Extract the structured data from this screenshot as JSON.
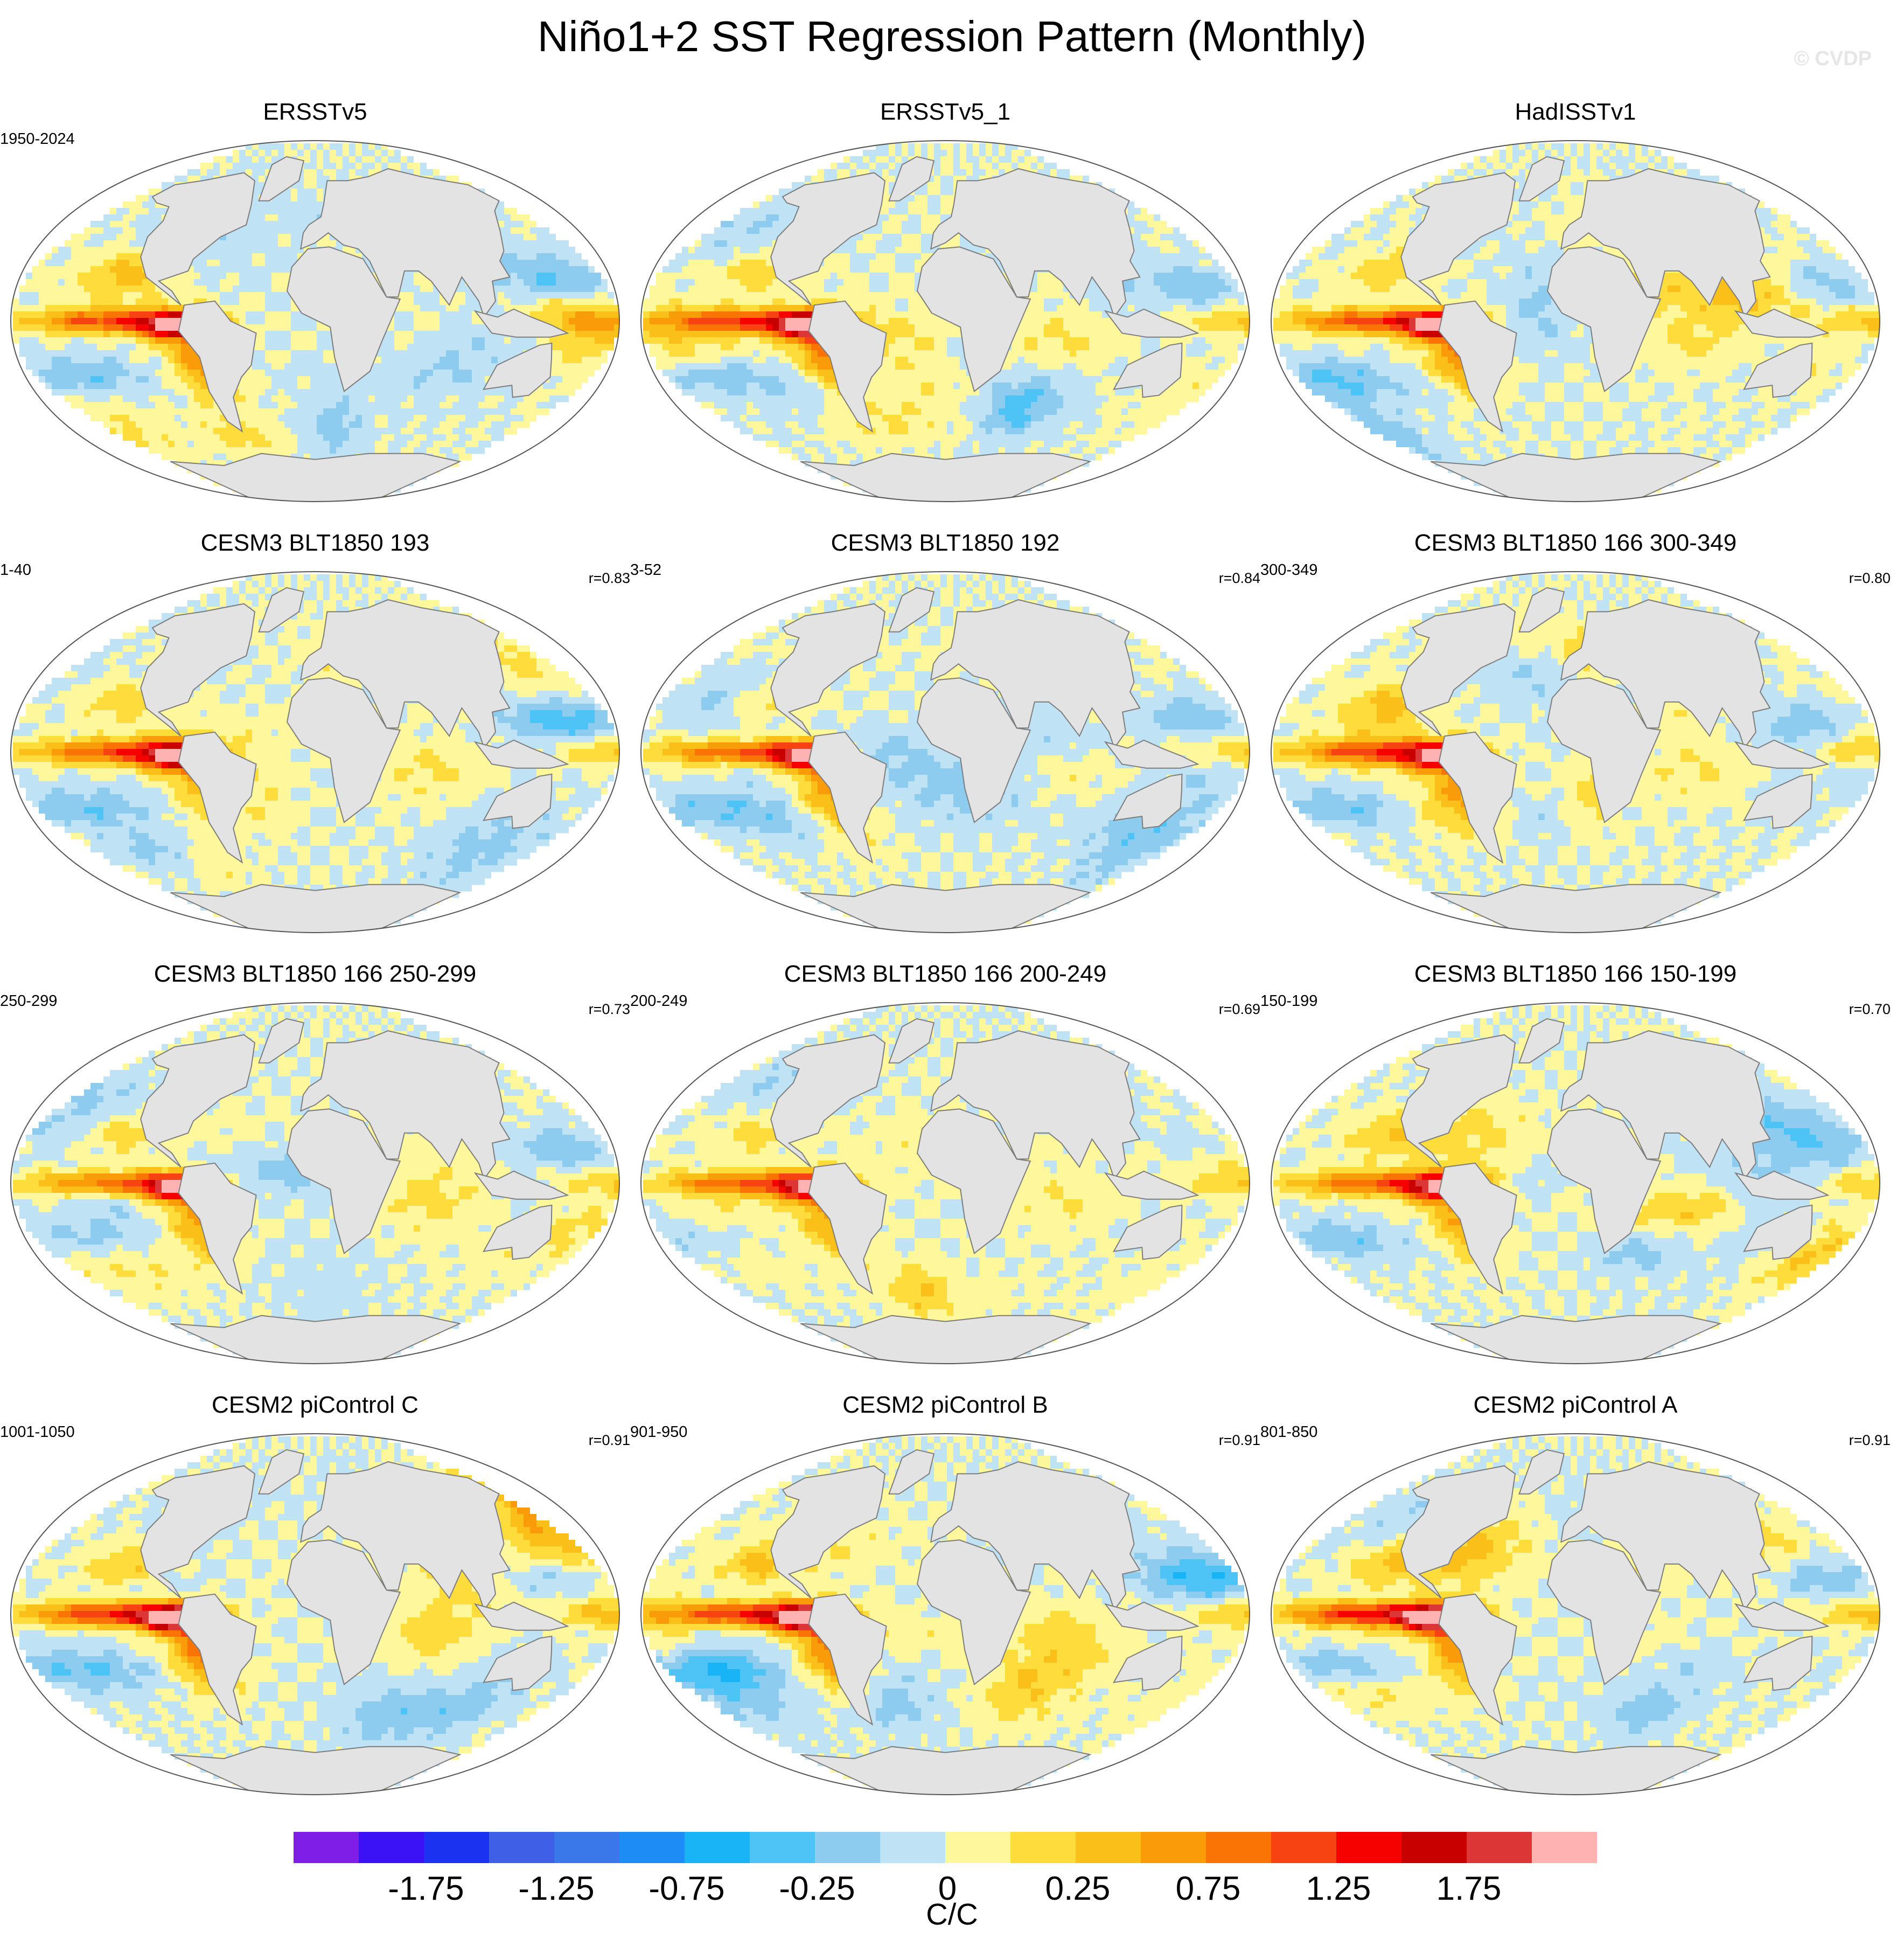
{
  "header": {
    "title": "Niño1+2 SST Regression Pattern (Monthly)",
    "watermark": "© CVDP"
  },
  "chart_data": {
    "type": "heatmap",
    "variable": "SST regression on Niño1+2 index",
    "projection": "global map (Robinson-like)",
    "units": "C/C",
    "colorbar": {
      "label": "C/C",
      "tick_labels": [
        "-1.75",
        "-1.25",
        "-0.75",
        "-0.25",
        "0",
        "0.25",
        "0.75",
        "1.25",
        "1.75"
      ],
      "colors": [
        "#7f1ee6",
        "#3a12f5",
        "#1b32f0",
        "#3e5fe6",
        "#3a78ea",
        "#1e8cf5",
        "#19b4f5",
        "#4ec3f5",
        "#8dccee",
        "#bfe3f5",
        "#fef79b",
        "#fddc3c",
        "#fbbf19",
        "#fa9c0a",
        "#f97405",
        "#f74212",
        "#f70000",
        "#c80000",
        "#dc3636",
        "#ffb2b2"
      ]
    },
    "panels": [
      {
        "title": "ERSSTv5",
        "period": "1950-2024",
        "correlation": "",
        "amp": 1.0,
        "seed": 3
      },
      {
        "title": "ERSSTv5_1",
        "period": "",
        "correlation": "",
        "amp": 1.0,
        "seed": 7
      },
      {
        "title": "HadISSTv1",
        "period": "",
        "correlation": "",
        "amp": 1.0,
        "seed": 11
      },
      {
        "title": "CESM3 BLT1850 193",
        "period": "1-40",
        "correlation": "r=0.83",
        "amp": 0.95,
        "seed": 13
      },
      {
        "title": "CESM3 BLT1850 192",
        "period": "3-52",
        "correlation": "r=0.84",
        "amp": 0.95,
        "seed": 17
      },
      {
        "title": "CESM3 BLT1850 166 300-349",
        "period": "300-349",
        "correlation": "r=0.80",
        "amp": 0.9,
        "seed": 19
      },
      {
        "title": "CESM3 BLT1850 166 250-299",
        "period": "250-299",
        "correlation": "r=0.73",
        "amp": 0.9,
        "seed": 23
      },
      {
        "title": "CESM3 BLT1850 166 200-249",
        "period": "200-249",
        "correlation": "r=0.69",
        "amp": 0.85,
        "seed": 29
      },
      {
        "title": "CESM3 BLT1850 166 150-199",
        "period": "150-199",
        "correlation": "r=0.70",
        "amp": 0.85,
        "seed": 31
      },
      {
        "title": "CESM2 piControl C",
        "period": "1001-1050",
        "correlation": "r=0.91",
        "amp": 1.15,
        "seed": 37
      },
      {
        "title": "CESM2 piControl B",
        "period": "901-950",
        "correlation": "r=0.91",
        "amp": 1.15,
        "seed": 41
      },
      {
        "title": "CESM2 piControl A",
        "period": "801-850",
        "correlation": "r=0.91",
        "amp": 1.15,
        "seed": 43
      }
    ]
  }
}
